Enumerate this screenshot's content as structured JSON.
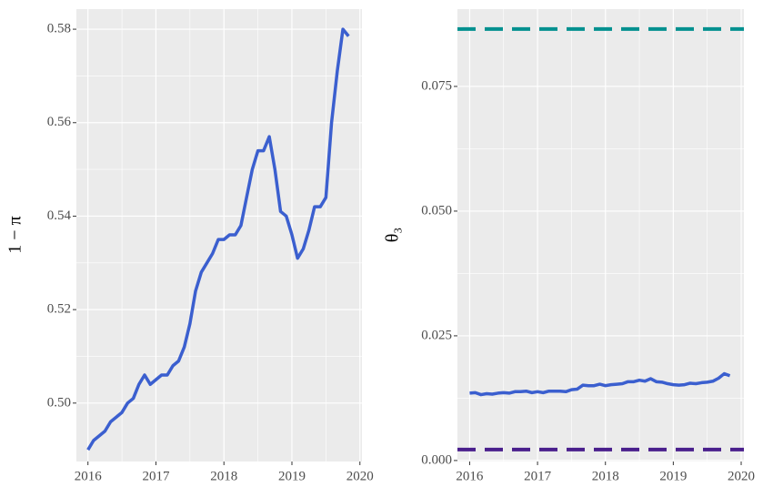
{
  "chart_data": [
    {
      "type": "line",
      "ylabel": "1 − π",
      "x": [
        2016,
        2016.083,
        2016.167,
        2016.25,
        2016.333,
        2016.417,
        2016.5,
        2016.583,
        2016.667,
        2016.75,
        2016.833,
        2016.917,
        2017,
        2017.083,
        2017.167,
        2017.25,
        2017.333,
        2017.417,
        2017.5,
        2017.583,
        2017.667,
        2017.75,
        2017.833,
        2017.917,
        2018,
        2018.083,
        2018.167,
        2018.25,
        2018.333,
        2018.417,
        2018.5,
        2018.583,
        2018.667,
        2018.75,
        2018.833,
        2018.917,
        2019,
        2019.083,
        2019.167,
        2019.25,
        2019.333,
        2019.417,
        2019.5,
        2019.583,
        2019.667,
        2019.75,
        2019.833
      ],
      "values": [
        0.49,
        0.492,
        0.493,
        0.494,
        0.496,
        0.497,
        0.498,
        0.5,
        0.501,
        0.504,
        0.506,
        0.504,
        0.505,
        0.506,
        0.506,
        0.508,
        0.509,
        0.512,
        0.517,
        0.524,
        0.528,
        0.53,
        0.532,
        0.535,
        0.535,
        0.536,
        0.536,
        0.538,
        0.544,
        0.55,
        0.554,
        0.554,
        0.557,
        0.55,
        0.541,
        0.54,
        0.536,
        0.531,
        0.533,
        0.537,
        0.542,
        0.542,
        0.544,
        0.56,
        0.571,
        0.58,
        0.5785
      ],
      "color": "#3b5fcf",
      "xlim": [
        2015.83,
        2020.03
      ],
      "xticks": [
        2016,
        2017,
        2018,
        2019,
        2020
      ],
      "ylim": [
        0.4875,
        0.5843
      ],
      "yticks": [
        {
          "value": 0.5,
          "label": "0.50"
        },
        {
          "value": 0.52,
          "label": "0.52"
        },
        {
          "value": 0.54,
          "label": "0.54"
        },
        {
          "value": 0.56,
          "label": "0.56"
        },
        {
          "value": 0.58,
          "label": "0.58"
        }
      ],
      "grid": true
    },
    {
      "type": "line",
      "ylabel": "θ₃",
      "x": [
        2016,
        2016.083,
        2016.167,
        2016.25,
        2016.333,
        2016.417,
        2016.5,
        2016.583,
        2016.667,
        2016.75,
        2016.833,
        2016.917,
        2017,
        2017.083,
        2017.167,
        2017.25,
        2017.333,
        2017.417,
        2017.5,
        2017.583,
        2017.667,
        2017.75,
        2017.833,
        2017.917,
        2018,
        2018.083,
        2018.167,
        2018.25,
        2018.333,
        2018.417,
        2018.5,
        2018.583,
        2018.667,
        2018.75,
        2018.833,
        2018.917,
        2019,
        2019.083,
        2019.167,
        2019.25,
        2019.333,
        2019.417,
        2019.5,
        2019.583,
        2019.667,
        2019.75,
        2019.833
      ],
      "values": [
        0.0135,
        0.0136,
        0.0132,
        0.0134,
        0.0133,
        0.0135,
        0.0136,
        0.0135,
        0.0138,
        0.0138,
        0.0139,
        0.0136,
        0.0138,
        0.0136,
        0.0139,
        0.0139,
        0.0139,
        0.0138,
        0.0142,
        0.0143,
        0.0151,
        0.015,
        0.015,
        0.0153,
        0.015,
        0.0152,
        0.0153,
        0.0154,
        0.0158,
        0.0158,
        0.0161,
        0.0159,
        0.0164,
        0.0158,
        0.0157,
        0.0154,
        0.0152,
        0.0151,
        0.0152,
        0.0155,
        0.0154,
        0.0156,
        0.0157,
        0.0159,
        0.0165,
        0.0174,
        0.017
      ],
      "color": "#3b5fcf",
      "hlines": [
        {
          "value": 0.0865,
          "color": "#00908f"
        },
        {
          "value": 0.0022,
          "color": "#4a1f8c"
        }
      ],
      "xlim": [
        2015.82,
        2020.04
      ],
      "xticks": [
        2016,
        2017,
        2018,
        2019,
        2020
      ],
      "ylim": [
        -0.0002,
        0.0905
      ],
      "yticks": [
        {
          "value": 0,
          "label": "0.000"
        },
        {
          "value": 0.025,
          "label": "0.025"
        },
        {
          "value": 0.05,
          "label": "0.050"
        },
        {
          "value": 0.075,
          "label": "0.075"
        }
      ],
      "grid": true
    }
  ]
}
